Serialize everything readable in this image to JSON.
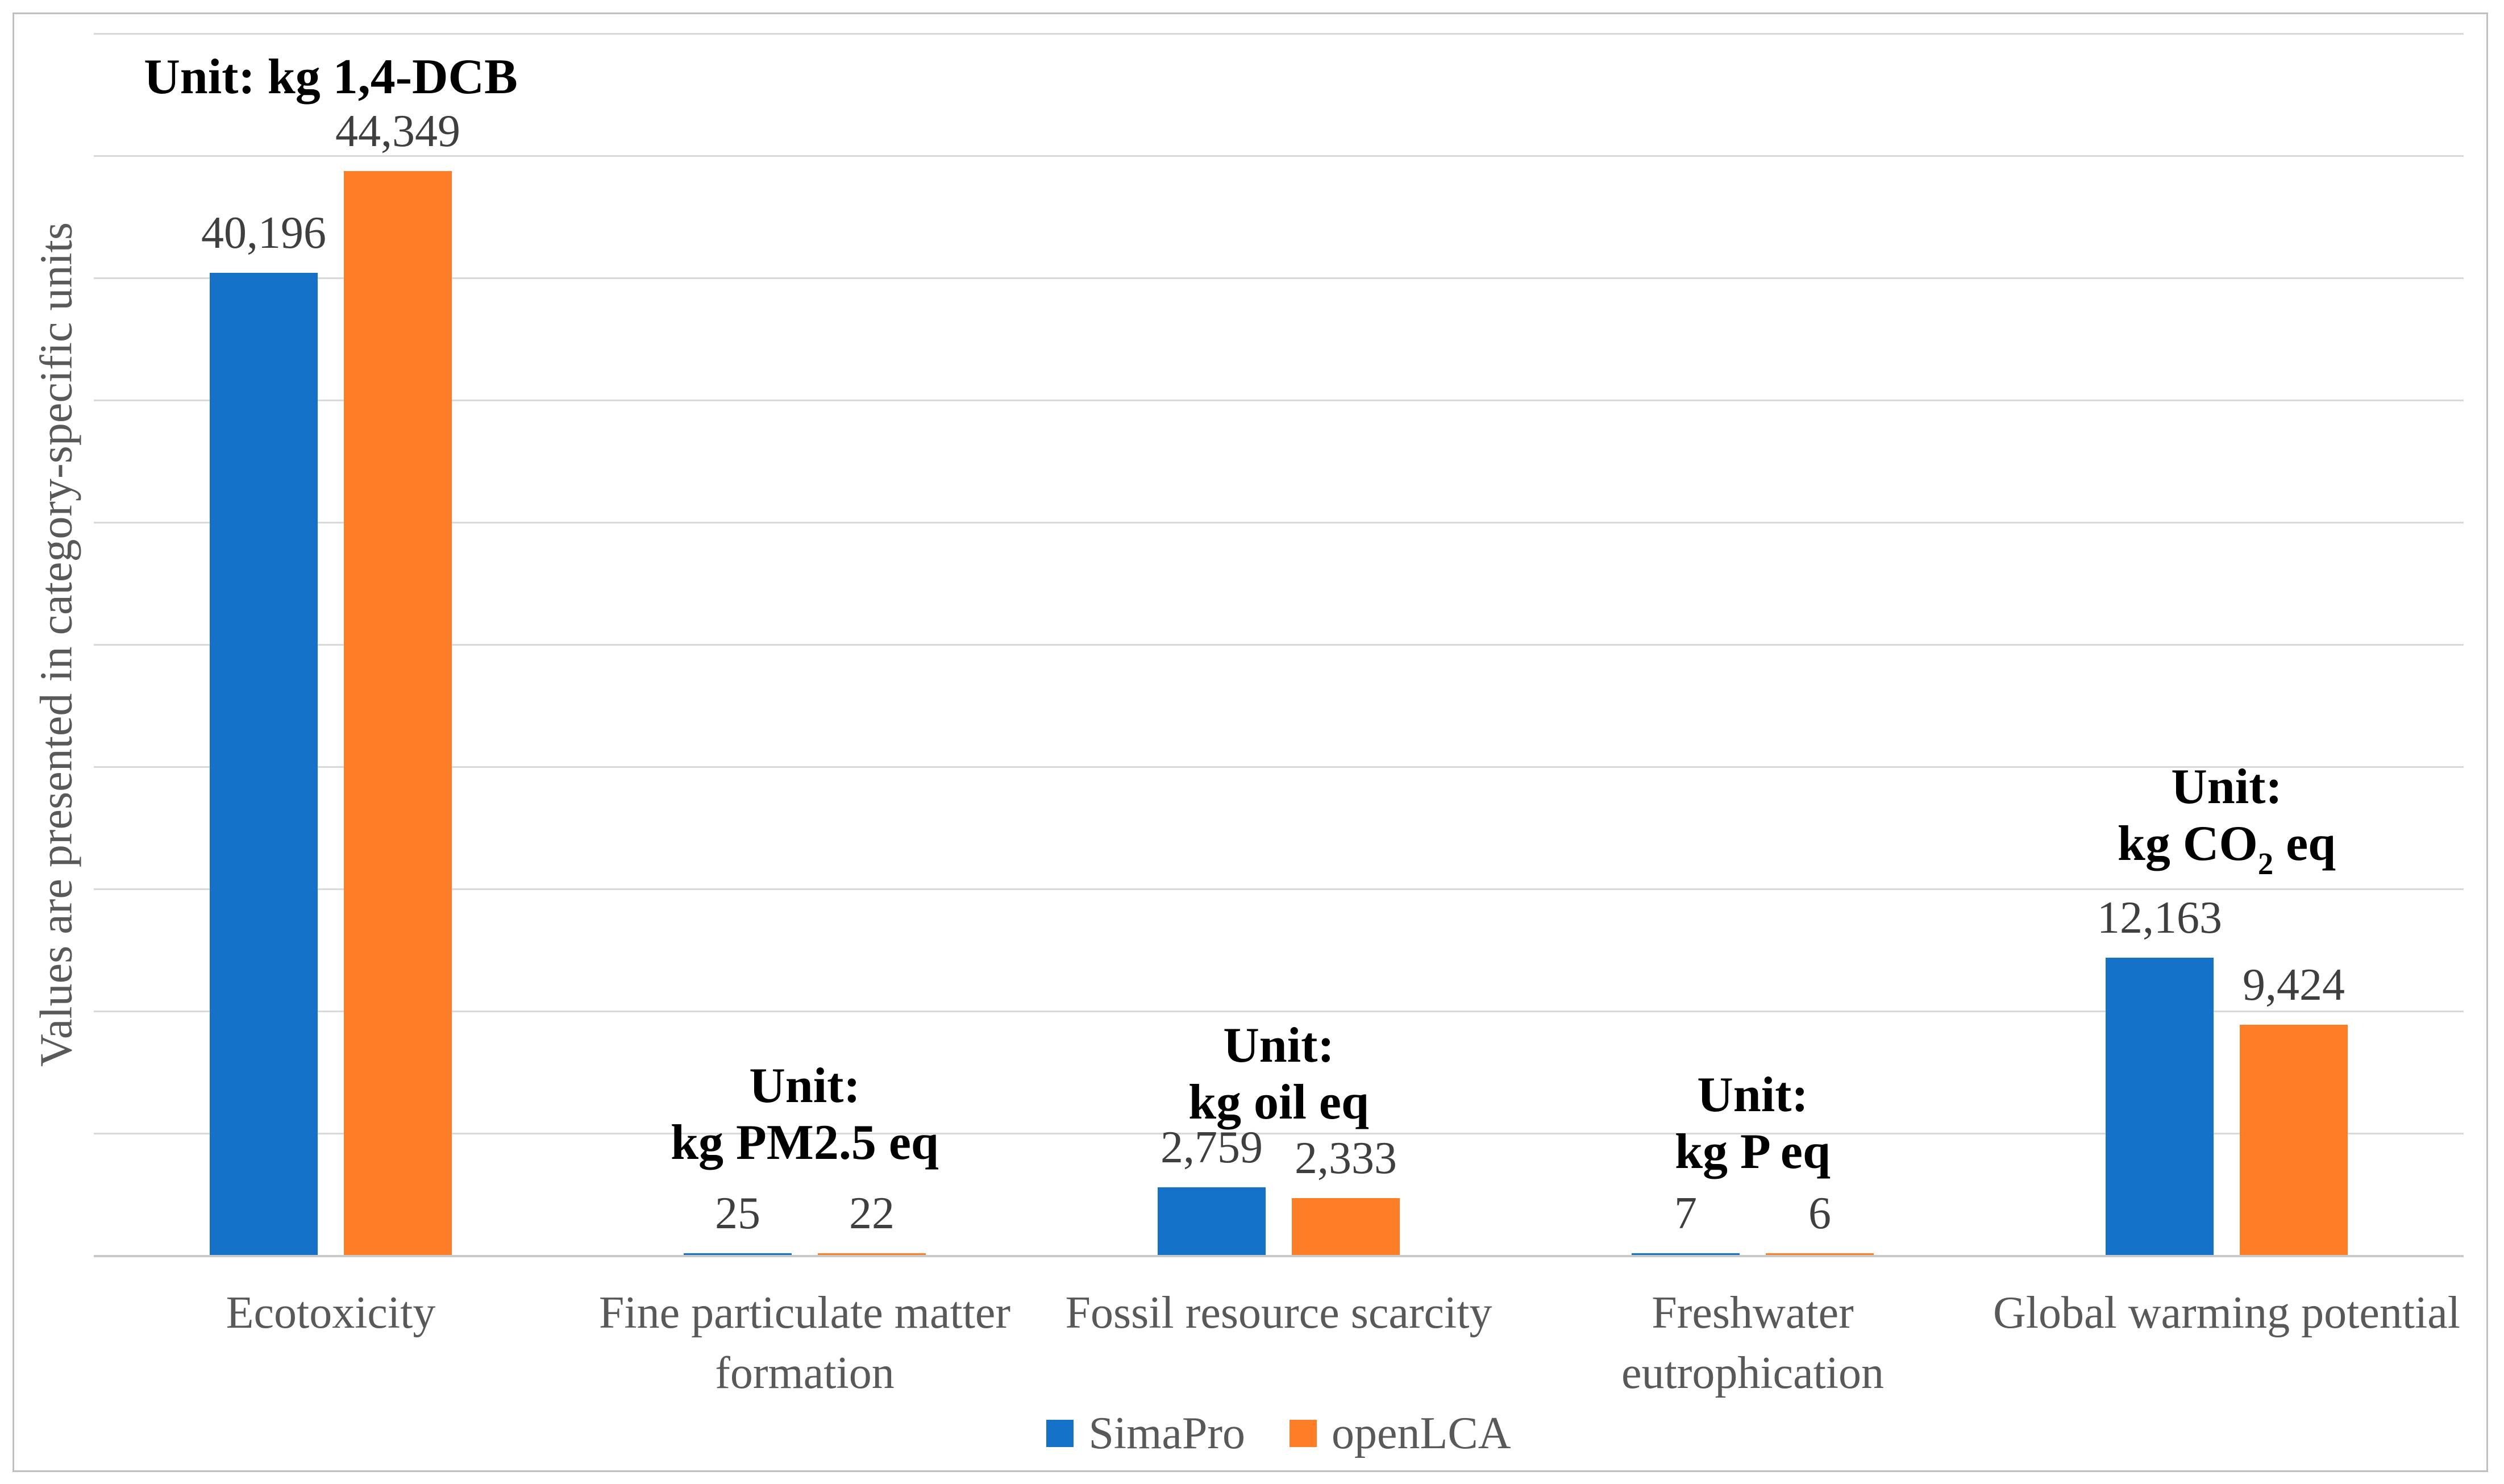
{
  "chart_data": {
    "type": "bar",
    "title": "",
    "ylabel": "Values are presented in category-specific units",
    "xlabel": "",
    "ylim": [
      0,
      50000
    ],
    "gridline_step": 5000,
    "grid": true,
    "value_axis_tick_labels_visible": false,
    "legend_position": "bottom",
    "categories": [
      {
        "lines": [
          "Ecotoxicity"
        ]
      },
      {
        "lines": [
          "Fine particulate matter",
          "formation"
        ]
      },
      {
        "lines": [
          "Fossil resource scarcity"
        ]
      },
      {
        "lines": [
          "Freshwater",
          "eutrophication"
        ]
      },
      {
        "lines": [
          "Global warming potential"
        ]
      }
    ],
    "series": [
      {
        "name": "SimaPro",
        "color": "#1572C8",
        "values": [
          40196,
          25,
          2759,
          7,
          12163
        ],
        "value_labels": [
          "40,196",
          "25",
          "2,759",
          "7",
          "12,163"
        ]
      },
      {
        "name": "openLCA",
        "color": "#FD7E26",
        "values": [
          44349,
          22,
          2333,
          6,
          9424
        ],
        "value_labels": [
          "44,349",
          "22",
          "2,333",
          "6",
          "9,424"
        ]
      }
    ],
    "unit_annotations": [
      {
        "lines": [
          "Unit: kg 1,4-DCB"
        ]
      },
      {
        "lines": [
          "Unit:",
          "kg PM2.5 eq"
        ]
      },
      {
        "lines": [
          "Unit:",
          "kg oil eq"
        ]
      },
      {
        "lines": [
          "Unit:",
          "kg P eq"
        ]
      },
      {
        "lines": [
          "Unit:",
          "kg CO₂ eq"
        ]
      }
    ],
    "colors": {
      "simapro": "#1572C8",
      "openlca": "#FD7E26",
      "gridline": "#D9D9D9",
      "axis_line": "#C9C9C9",
      "frame_border": "#BFBFBF",
      "value_label_text": "#3F3F3F",
      "category_label_text": "#595959",
      "unit_text": "#000000"
    }
  }
}
